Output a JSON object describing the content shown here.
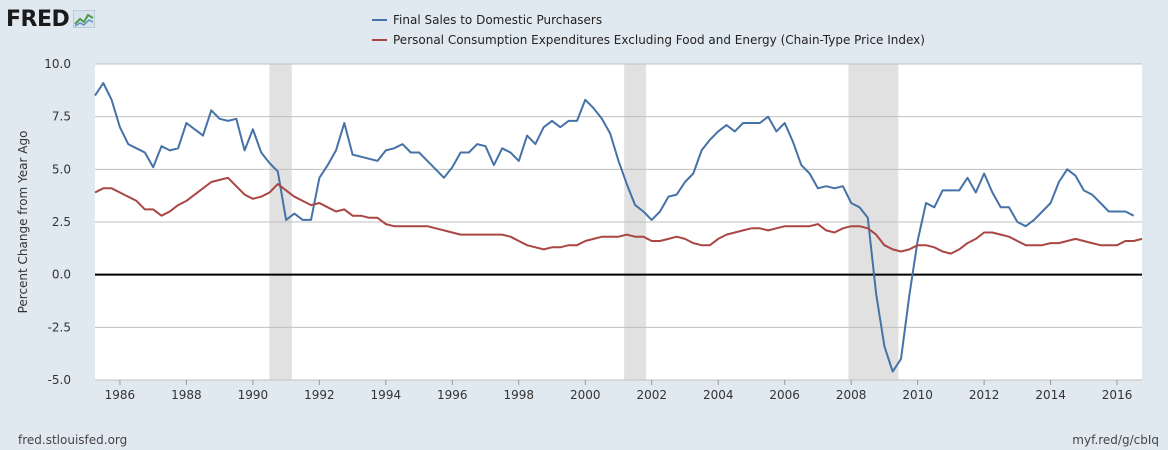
{
  "branding": {
    "logo_text": "FRED",
    "logo_icon": "chart-line-icon"
  },
  "footer": {
    "source": "fred.stlouisfed.org",
    "link": "myf.red/g/cbIq"
  },
  "colors": {
    "background": "#e1e9f0",
    "plot_bg": "#ffffff",
    "series1": "#4572a7",
    "series2": "#aa4643",
    "recession": "#e1e1e1"
  },
  "chart_data": {
    "type": "line",
    "title": "",
    "xlabel": "",
    "ylabel": "Percent Change from Year Ago",
    "xlim": [
      1985.25,
      2016.75
    ],
    "ylim": [
      -5.0,
      10.0
    ],
    "yticks": [
      -5.0,
      -2.5,
      0.0,
      2.5,
      5.0,
      7.5,
      10.0
    ],
    "ytick_labels": [
      "-5.0",
      "-2.5",
      "0.0",
      "2.5",
      "5.0",
      "7.5",
      "10.0"
    ],
    "xticks": [
      1986,
      1988,
      1990,
      1992,
      1994,
      1996,
      1998,
      2000,
      2002,
      2004,
      2006,
      2008,
      2010,
      2012,
      2014,
      2016
    ],
    "xtick_labels": [
      "1986",
      "1988",
      "1990",
      "1992",
      "1994",
      "1996",
      "1998",
      "2000",
      "2002",
      "2004",
      "2006",
      "2008",
      "2010",
      "2012",
      "2014",
      "2016"
    ],
    "grid": true,
    "legend": "top",
    "recessions": [
      [
        1990.5,
        1991.17
      ],
      [
        2001.17,
        2001.83
      ],
      [
        2007.92,
        2009.42
      ]
    ],
    "series": [
      {
        "name": "Final Sales to Domestic Purchasers",
        "color": "#4572a7",
        "x": [
          1985.25,
          1985.5,
          1985.75,
          1986.0,
          1986.25,
          1986.5,
          1986.75,
          1987.0,
          1987.25,
          1987.5,
          1987.75,
          1988.0,
          1988.25,
          1988.5,
          1988.75,
          1989.0,
          1989.25,
          1989.5,
          1989.75,
          1990.0,
          1990.25,
          1990.5,
          1990.75,
          1991.0,
          1991.25,
          1991.5,
          1991.75,
          1992.0,
          1992.25,
          1992.5,
          1992.75,
          1993.0,
          1993.25,
          1993.5,
          1993.75,
          1994.0,
          1994.25,
          1994.5,
          1994.75,
          1995.0,
          1995.25,
          1995.5,
          1995.75,
          1996.0,
          1996.25,
          1996.5,
          1996.75,
          1997.0,
          1997.25,
          1997.5,
          1997.75,
          1998.0,
          1998.25,
          1998.5,
          1998.75,
          1999.0,
          1999.25,
          1999.5,
          1999.75,
          2000.0,
          2000.25,
          2000.5,
          2000.75,
          2001.0,
          2001.25,
          2001.5,
          2001.75,
          2002.0,
          2002.25,
          2002.5,
          2002.75,
          2003.0,
          2003.25,
          2003.5,
          2003.75,
          2004.0,
          2004.25,
          2004.5,
          2004.75,
          2005.0,
          2005.25,
          2005.5,
          2005.75,
          2006.0,
          2006.25,
          2006.5,
          2006.75,
          2007.0,
          2007.25,
          2007.5,
          2007.75,
          2008.0,
          2008.25,
          2008.5,
          2008.75,
          2009.0,
          2009.25,
          2009.5,
          2009.75,
          2010.0,
          2010.25,
          2010.5,
          2010.75,
          2011.0,
          2011.25,
          2011.5,
          2011.75,
          2012.0,
          2012.25,
          2012.5,
          2012.75,
          2013.0,
          2013.25,
          2013.5,
          2013.75,
          2014.0,
          2014.25,
          2014.5,
          2014.75,
          2015.0,
          2015.25,
          2015.5,
          2015.75,
          2016.0,
          2016.25,
          2016.5
        ],
        "y": [
          8.5,
          9.1,
          8.3,
          7.0,
          6.2,
          6.0,
          5.8,
          5.1,
          6.1,
          5.9,
          6.0,
          7.2,
          6.9,
          6.6,
          7.8,
          7.4,
          7.3,
          7.4,
          5.9,
          6.9,
          5.8,
          5.3,
          4.9,
          2.6,
          2.9,
          2.6,
          2.6,
          4.6,
          5.2,
          5.9,
          7.2,
          5.7,
          5.6,
          5.5,
          5.4,
          5.9,
          6.0,
          6.2,
          5.8,
          5.8,
          5.4,
          5.0,
          4.6,
          5.1,
          5.8,
          5.8,
          6.2,
          6.1,
          5.2,
          6.0,
          5.8,
          5.4,
          6.6,
          6.2,
          7.0,
          7.3,
          7.0,
          7.3,
          7.3,
          8.3,
          7.9,
          7.4,
          6.7,
          5.4,
          4.3,
          3.3,
          3.0,
          2.6,
          3.0,
          3.7,
          3.8,
          4.4,
          4.8,
          5.9,
          6.4,
          6.8,
          7.1,
          6.8,
          7.2,
          7.2,
          7.2,
          7.5,
          6.8,
          7.2,
          6.3,
          5.2,
          4.8,
          4.1,
          4.2,
          4.1,
          4.2,
          3.4,
          3.2,
          2.7,
          -0.9,
          -3.4,
          -4.6,
          -4.0,
          -1.0,
          1.6,
          3.4,
          3.2,
          4.0,
          4.0,
          4.0,
          4.6,
          3.9,
          4.8,
          3.9,
          3.2,
          3.2,
          2.5,
          2.3,
          2.6,
          3.0,
          3.4,
          4.4,
          5.0,
          4.7,
          4.0,
          3.8,
          3.4,
          3.0,
          3.0,
          3.0,
          2.8
        ]
      },
      {
        "name": "Personal Consumption Expenditures Excluding Food and Energy (Chain-Type Price Index)",
        "color": "#aa4643",
        "x": [
          1985.25,
          1985.5,
          1985.75,
          1986.0,
          1986.25,
          1986.5,
          1986.75,
          1987.0,
          1987.25,
          1987.5,
          1987.75,
          1988.0,
          1988.25,
          1988.5,
          1988.75,
          1989.0,
          1989.25,
          1989.5,
          1989.75,
          1990.0,
          1990.25,
          1990.5,
          1990.75,
          1991.0,
          1991.25,
          1991.5,
          1991.75,
          1992.0,
          1992.25,
          1992.5,
          1992.75,
          1993.0,
          1993.25,
          1993.5,
          1993.75,
          1994.0,
          1994.25,
          1994.5,
          1994.75,
          1995.0,
          1995.25,
          1995.5,
          1995.75,
          1996.0,
          1996.25,
          1996.5,
          1996.75,
          1997.0,
          1997.25,
          1997.5,
          1997.75,
          1998.0,
          1998.25,
          1998.5,
          1998.75,
          1999.0,
          1999.25,
          1999.5,
          1999.75,
          2000.0,
          2000.25,
          2000.5,
          2000.75,
          2001.0,
          2001.25,
          2001.5,
          2001.75,
          2002.0,
          2002.25,
          2002.5,
          2002.75,
          2003.0,
          2003.25,
          2003.5,
          2003.75,
          2004.0,
          2004.25,
          2004.5,
          2004.75,
          2005.0,
          2005.25,
          2005.5,
          2005.75,
          2006.0,
          2006.25,
          2006.5,
          2006.75,
          2007.0,
          2007.25,
          2007.5,
          2007.75,
          2008.0,
          2008.25,
          2008.5,
          2008.75,
          2009.0,
          2009.25,
          2009.5,
          2009.75,
          2010.0,
          2010.25,
          2010.5,
          2010.75,
          2011.0,
          2011.25,
          2011.5,
          2011.75,
          2012.0,
          2012.25,
          2012.5,
          2012.75,
          2013.0,
          2013.25,
          2013.5,
          2013.75,
          2014.0,
          2014.25,
          2014.5,
          2014.75,
          2015.0,
          2015.25,
          2015.5,
          2015.75,
          2016.0,
          2016.25,
          2016.5,
          2016.75
        ],
        "y": [
          3.9,
          4.1,
          4.1,
          3.9,
          3.7,
          3.5,
          3.1,
          3.1,
          2.8,
          3.0,
          3.3,
          3.5,
          3.8,
          4.1,
          4.4,
          4.5,
          4.6,
          4.2,
          3.8,
          3.6,
          3.7,
          3.9,
          4.3,
          4.0,
          3.7,
          3.5,
          3.3,
          3.4,
          3.2,
          3.0,
          3.1,
          2.8,
          2.8,
          2.7,
          2.7,
          2.4,
          2.3,
          2.3,
          2.3,
          2.3,
          2.3,
          2.2,
          2.1,
          2.0,
          1.9,
          1.9,
          1.9,
          1.9,
          1.9,
          1.9,
          1.8,
          1.6,
          1.4,
          1.3,
          1.2,
          1.3,
          1.3,
          1.4,
          1.4,
          1.6,
          1.7,
          1.8,
          1.8,
          1.8,
          1.9,
          1.8,
          1.8,
          1.6,
          1.6,
          1.7,
          1.8,
          1.7,
          1.5,
          1.4,
          1.4,
          1.7,
          1.9,
          2.0,
          2.1,
          2.2,
          2.2,
          2.1,
          2.2,
          2.3,
          2.3,
          2.3,
          2.3,
          2.4,
          2.1,
          2.0,
          2.2,
          2.3,
          2.3,
          2.2,
          1.9,
          1.4,
          1.2,
          1.1,
          1.2,
          1.4,
          1.4,
          1.3,
          1.1,
          1.0,
          1.2,
          1.5,
          1.7,
          2.0,
          2.0,
          1.9,
          1.8,
          1.6,
          1.4,
          1.4,
          1.4,
          1.5,
          1.5,
          1.6,
          1.7,
          1.6,
          1.5,
          1.4,
          1.4,
          1.4,
          1.6,
          1.6,
          1.7
        ]
      }
    ]
  }
}
